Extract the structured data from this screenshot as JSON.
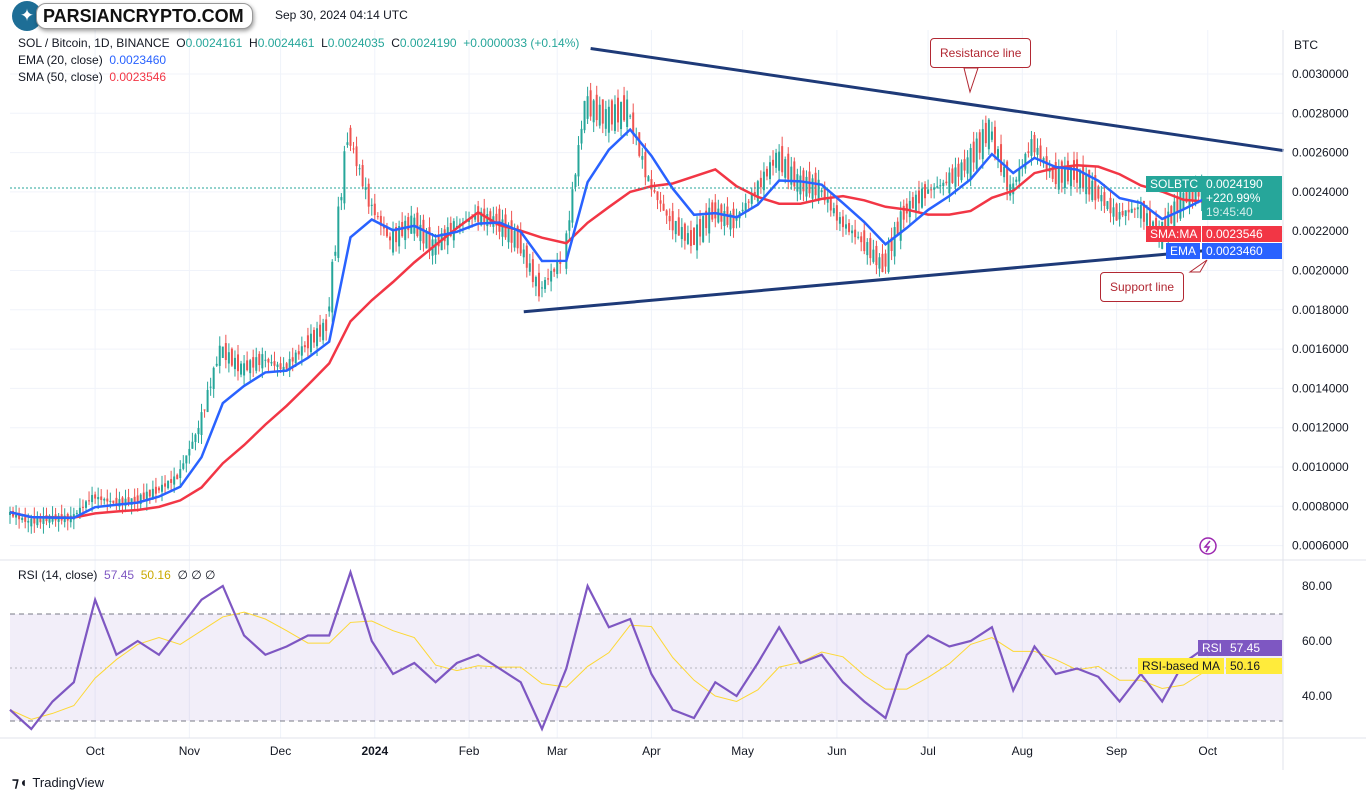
{
  "header": {
    "title_suffix": "Sep 30, 2024 04:14 UTC",
    "watermark": "PARSIANCRYPTO.COM",
    "symbol": "SOL / Bitcoin, 1D, BINANCE",
    "o_label": "O",
    "open": "0.0024161",
    "h_label": "H",
    "high": "0.0024461",
    "l_label": "L",
    "low": "0.0024035",
    "c_label": "C",
    "close": "0.0024190",
    "change": "+0.0000033 (+0.14%)",
    "ema_label": "EMA (20, close)",
    "ema_value": "0.0023460",
    "sma_label": "SMA (50, close)",
    "sma_value": "0.0023546"
  },
  "price_axis": {
    "currency": "BTC",
    "ticks": [
      "0.0030000",
      "0.0028000",
      "0.0026000",
      "0.0024000",
      "0.0022000",
      "0.0020000",
      "0.0018000",
      "0.0016000",
      "0.0014000",
      "0.0012000",
      "0.0010000",
      "0.0008000",
      "0.0006000"
    ]
  },
  "tags": {
    "symbol": "SOLBTC",
    "price": "0.0024190",
    "change_pct": "+220.99%",
    "countdown": "19:45:40",
    "sma_label": "SMA:MA",
    "sma": "0.0023546",
    "ema_label": "EMA",
    "ema": "0.0023460"
  },
  "annotations": {
    "resistance": "Resistance line",
    "support": "Support line"
  },
  "rsi": {
    "label": "RSI (14, close)",
    "value": "57.45",
    "ma_value": "50.16",
    "extra": "∅ ∅ ∅",
    "ticks": [
      "80.00",
      "60.00",
      "40.00"
    ],
    "tag_label": "RSI",
    "ma_tag_label": "RSI-based MA"
  },
  "time_axis": [
    "Oct",
    "Nov",
    "Dec",
    "2024",
    "Feb",
    "Mar",
    "Apr",
    "May",
    "Jun",
    "Jul",
    "Aug",
    "Sep",
    "Oct"
  ],
  "footer": {
    "brand": "TradingView"
  },
  "colors": {
    "up": "#26a69a",
    "down": "#ef5350",
    "ema": "#2962ff",
    "sma": "#f23645",
    "rsi": "#7e57c2",
    "rsi_ma": "#fdd835",
    "trend": "#1e3a78"
  },
  "chart_data": {
    "type": "candlestick",
    "interval": "sampled weekly (estimated)",
    "dates": [
      "2023-09-03",
      "2023-09-10",
      "2023-09-17",
      "2023-09-24",
      "2023-10-01",
      "2023-10-08",
      "2023-10-15",
      "2023-10-22",
      "2023-10-29",
      "2023-11-05",
      "2023-11-12",
      "2023-11-19",
      "2023-11-26",
      "2023-12-03",
      "2023-12-10",
      "2023-12-17",
      "2023-12-24",
      "2023-12-31",
      "2024-01-07",
      "2024-01-14",
      "2024-01-21",
      "2024-01-28",
      "2024-02-04",
      "2024-02-11",
      "2024-02-18",
      "2024-02-25",
      "2024-03-04",
      "2024-03-11",
      "2024-03-18",
      "2024-03-25",
      "2024-04-01",
      "2024-04-08",
      "2024-04-15",
      "2024-04-22",
      "2024-04-29",
      "2024-05-06",
      "2024-05-13",
      "2024-05-20",
      "2024-05-27",
      "2024-06-03",
      "2024-06-10",
      "2024-06-17",
      "2024-06-24",
      "2024-07-01",
      "2024-07-08",
      "2024-07-15",
      "2024-07-22",
      "2024-07-29",
      "2024-08-05",
      "2024-08-12",
      "2024-08-19",
      "2024-08-26",
      "2024-09-02",
      "2024-09-09",
      "2024-09-16",
      "2024-09-23",
      "2024-09-30"
    ],
    "close": [
      0.00077,
      0.00072,
      0.00074,
      0.00074,
      0.00085,
      0.00082,
      0.00083,
      0.00088,
      0.00095,
      0.0012,
      0.0016,
      0.0015,
      0.00155,
      0.0015,
      0.00162,
      0.00172,
      0.0027,
      0.00235,
      0.00215,
      0.00225,
      0.00212,
      0.00222,
      0.00228,
      0.00225,
      0.00215,
      0.0019,
      0.00205,
      0.00285,
      0.00278,
      0.00282,
      0.00245,
      0.00225,
      0.00215,
      0.0023,
      0.00225,
      0.0024,
      0.00258,
      0.00245,
      0.00242,
      0.00225,
      0.00215,
      0.00202,
      0.0023,
      0.0024,
      0.00245,
      0.00255,
      0.00272,
      0.0024,
      0.00265,
      0.00248,
      0.0025,
      0.0024,
      0.00228,
      0.00232,
      0.00218,
      0.00236,
      0.002419
    ],
    "rsi": [
      35,
      28,
      38,
      45,
      75,
      55,
      60,
      55,
      65,
      75,
      80,
      62,
      55,
      58,
      62,
      62,
      85,
      60,
      48,
      52,
      45,
      52,
      55,
      50,
      45,
      28,
      50,
      80,
      65,
      68,
      48,
      35,
      32,
      45,
      40,
      52,
      65,
      52,
      55,
      45,
      38,
      32,
      55,
      62,
      58,
      60,
      65,
      42,
      58,
      48,
      50,
      47,
      38,
      48,
      38,
      52,
      57.45
    ],
    "trendlines": [
      {
        "name": "Resistance line",
        "from": [
          "2024-03-12",
          0.00313
        ],
        "to": [
          "2024-10-26",
          0.00261
        ]
      },
      {
        "name": "Support line",
        "from": [
          "2024-02-19",
          0.00179
        ],
        "to": [
          "2024-10-14",
          0.00212
        ]
      }
    ],
    "ylim": [
      0.0006,
      0.0031
    ],
    "rsi_bands": [
      30,
      70
    ],
    "rsi_ylim": [
      20,
      90
    ],
    "xlim": [
      "2023-09-03",
      "2024-10-25"
    ]
  }
}
